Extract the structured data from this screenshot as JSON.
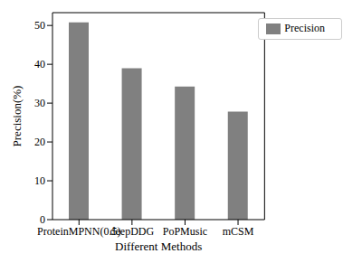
{
  "chart_data": {
    "type": "bar",
    "categories": [
      "ProteinMPNN(0.5)",
      "deepDDG",
      "PoPMusic",
      "mCSM"
    ],
    "series": [
      {
        "name": "Precision",
        "color": "#808080",
        "values": [
          50.8,
          39.0,
          34.3,
          27.8
        ]
      }
    ],
    "x_label": "Different Methods",
    "y_label": "Precision(%)",
    "ylim": [
      0,
      53.3
    ],
    "yticks": [
      0,
      10,
      20,
      30,
      40,
      50
    ],
    "legend": "upper right",
    "grid": false
  }
}
